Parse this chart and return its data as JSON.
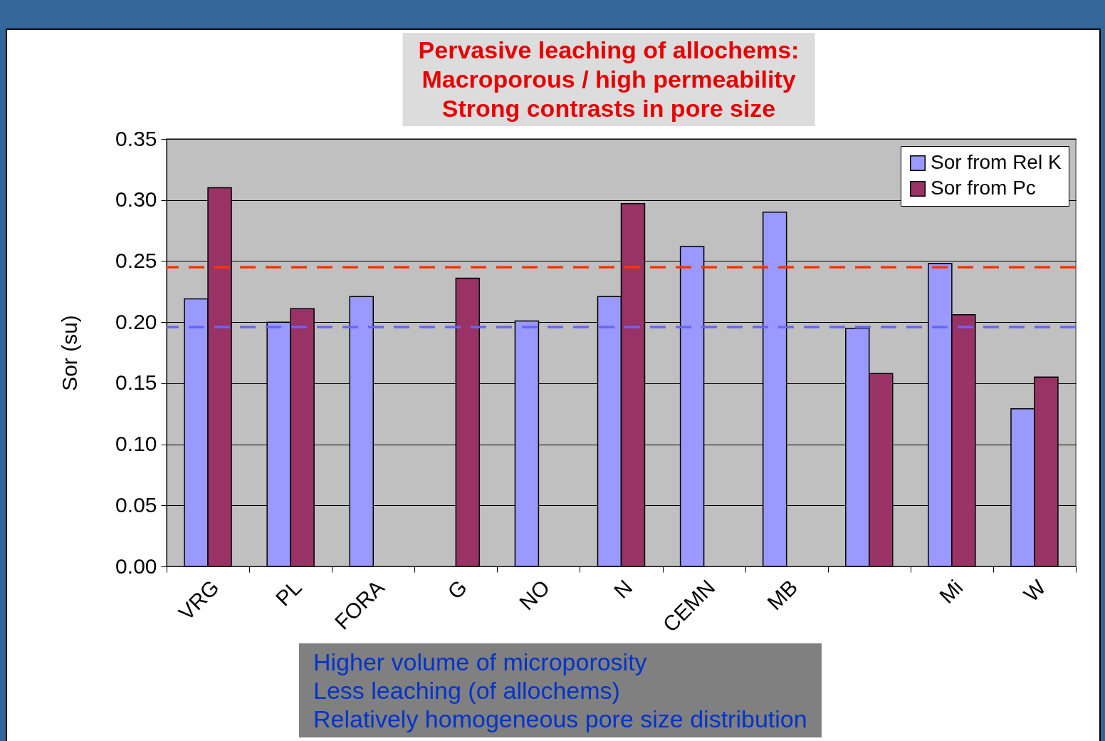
{
  "chart_data": {
    "type": "bar",
    "ylabel": "Sor (su)",
    "categories": [
      "VRG",
      "PL",
      "FORA",
      "G",
      "NO",
      "N",
      "CEMN",
      "MB",
      null,
      "Mi",
      "W"
    ],
    "series": [
      {
        "name": "Sor from Rel K",
        "color": "#9999ff",
        "values": [
          0.219,
          0.2,
          0.221,
          null,
          0.201,
          0.221,
          0.262,
          0.29,
          0.195,
          0.248,
          0.129
        ]
      },
      {
        "name": "Sor from Pc",
        "color": "#993366",
        "values": [
          0.31,
          0.211,
          null,
          0.236,
          null,
          0.297,
          null,
          null,
          0.158,
          0.206,
          0.155
        ]
      }
    ],
    "ylim": [
      0,
      0.35
    ],
    "yticks": [
      {
        "value": 0,
        "label": "0.00"
      },
      0.05,
      {
        "value": 0.1,
        "label": "0.10"
      },
      0.15,
      {
        "value": 0.2,
        "label": "0.20"
      },
      0.25,
      {
        "value": 0.3,
        "label": "0.30"
      },
      0.35
    ],
    "grid": "y",
    "legend": "top right",
    "ref_lines": [
      {
        "axis": "y",
        "value": 0.245,
        "color": "#ff3300",
        "line_style": "dashed"
      },
      {
        "axis": "y",
        "value": 0.196,
        "color": "#6666ff",
        "line_style": "dashed"
      }
    ],
    "annotations": [
      "Pervasive leaching of allochems:\nMacroporous / high permeability\nStrong contrasts in pore size",
      "Higher volume of microporosity\nLess leaching (of allochems)\nRelatively homogeneous pore size distribution"
    ]
  }
}
